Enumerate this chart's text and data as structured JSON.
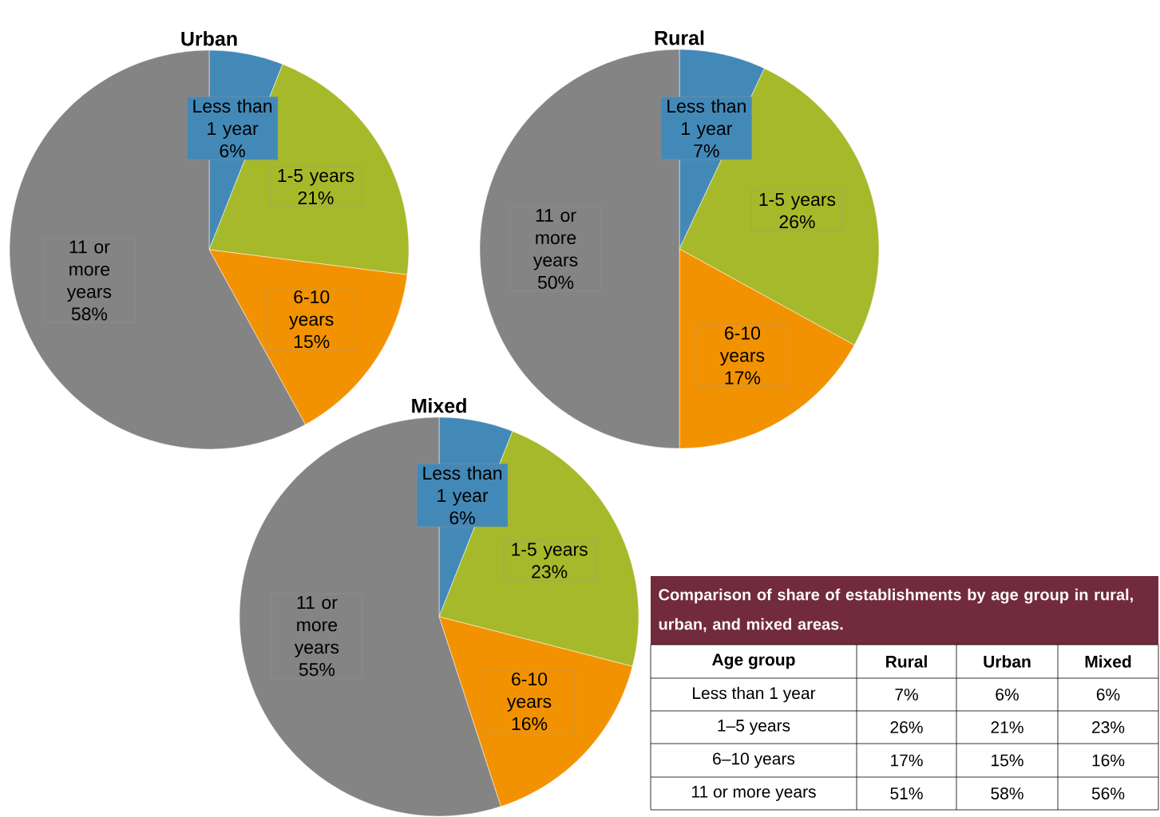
{
  "chart_data": [
    {
      "type": "pie",
      "title": "Urban",
      "categories": [
        "Less than 1 year",
        "1-5 years",
        "6-10 years",
        "11 or more years"
      ],
      "values": [
        6,
        21,
        15,
        58
      ],
      "value_labels": [
        "6%",
        "21%",
        "15%",
        "58%"
      ],
      "colors": [
        "#4389b8",
        "#a6b92a",
        "#f39200",
        "#848484"
      ]
    },
    {
      "type": "pie",
      "title": "Rural",
      "categories": [
        "Less than 1 year",
        "1-5 years",
        "6-10 years",
        "11 or more years"
      ],
      "values": [
        7,
        26,
        17,
        50
      ],
      "value_labels": [
        "7%",
        "26%",
        "17%",
        "50%"
      ],
      "colors": [
        "#4389b8",
        "#a6b92a",
        "#f39200",
        "#848484"
      ]
    },
    {
      "type": "pie",
      "title": "Mixed",
      "categories": [
        "Less than 1 year",
        "1-5 years",
        "6-10 years",
        "11 or more years"
      ],
      "values": [
        6,
        23,
        16,
        55
      ],
      "value_labels": [
        "6%",
        "23%",
        "16%",
        "55%"
      ],
      "colors": [
        "#4389b8",
        "#a6b92a",
        "#f39200",
        "#848484"
      ]
    },
    {
      "type": "other",
      "title": "Comparison of share of establishments by age group in rural, urban, and mixed areas.",
      "annotations": [
        "Age group",
        "Rural",
        "Urban",
        "Mixed",
        "Less than 1 year",
        "7%",
        "6%",
        "6%",
        "1–5 years",
        "26%",
        "21%",
        "23%",
        "6–10 years",
        "17%",
        "15%",
        "16%",
        "11 or more years",
        "51%",
        "58%",
        "56%"
      ]
    }
  ]
}
